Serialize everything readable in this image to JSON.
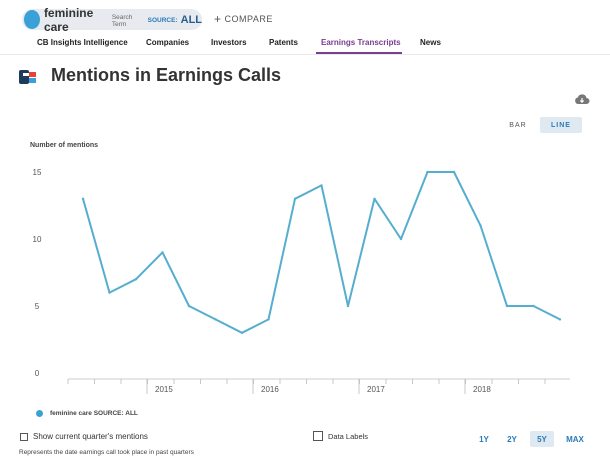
{
  "search": {
    "term": "feminine care",
    "term_sub": "Search Term",
    "source_key": "SOURCE:",
    "source_value": "ALL",
    "compare_label": "COMPARE"
  },
  "nav": {
    "tabs": [
      {
        "label": "CB Insights Intelligence"
      },
      {
        "label": "Companies"
      },
      {
        "label": "Investors"
      },
      {
        "label": "Patents"
      },
      {
        "label": "Earnings Transcripts"
      },
      {
        "label": "News"
      }
    ],
    "active": "Earnings Transcripts"
  },
  "page": {
    "title": "Mentions in Earnings Calls"
  },
  "icons": {
    "logo": "cb-insights-logo-icon",
    "download": "cloud-download-icon",
    "legend": "series-dot-icon"
  },
  "colors": {
    "line": "#56aecf",
    "accent": "#3aa0d8",
    "active_tab": "#7a3d8f",
    "toggle_active_bg": "#dfe9f1"
  },
  "view_toggle": {
    "bar": "BAR",
    "line": "LINE",
    "active": "LINE"
  },
  "chart_data": {
    "type": "line",
    "ylabel": "Number of mentions",
    "ylim": [
      0,
      15
    ],
    "yticks": [
      "0",
      "5",
      "10",
      "15"
    ],
    "xticks": [
      "2015",
      "2016",
      "2017",
      "2018"
    ],
    "x": [
      "2014-Q2",
      "2014-Q3",
      "2014-Q4",
      "2015-Q1",
      "2015-Q2",
      "2015-Q3",
      "2015-Q4",
      "2016-Q1",
      "2016-Q2",
      "2016-Q3",
      "2016-Q4",
      "2017-Q1",
      "2017-Q2",
      "2017-Q3",
      "2017-Q4",
      "2018-Q1",
      "2018-Q2",
      "2018-Q3",
      "2018-Q4"
    ],
    "series": [
      {
        "name": "feminine care SOURCE: ALL",
        "values": [
          13,
          6,
          7,
          9,
          5,
          4,
          3,
          4,
          13,
          14,
          5,
          13,
          10,
          15,
          15,
          11,
          5,
          5,
          4
        ]
      }
    ],
    "grid": false,
    "legend": "bottom-left"
  },
  "controls": {
    "show_current_quarter": "Show current quarter's mentions",
    "data_labels": "Data Labels",
    "ranges": [
      "1Y",
      "2Y",
      "5Y",
      "MAX"
    ],
    "active_range": "5Y"
  },
  "footnote": "Represents the date earnings call took place in past quarters"
}
